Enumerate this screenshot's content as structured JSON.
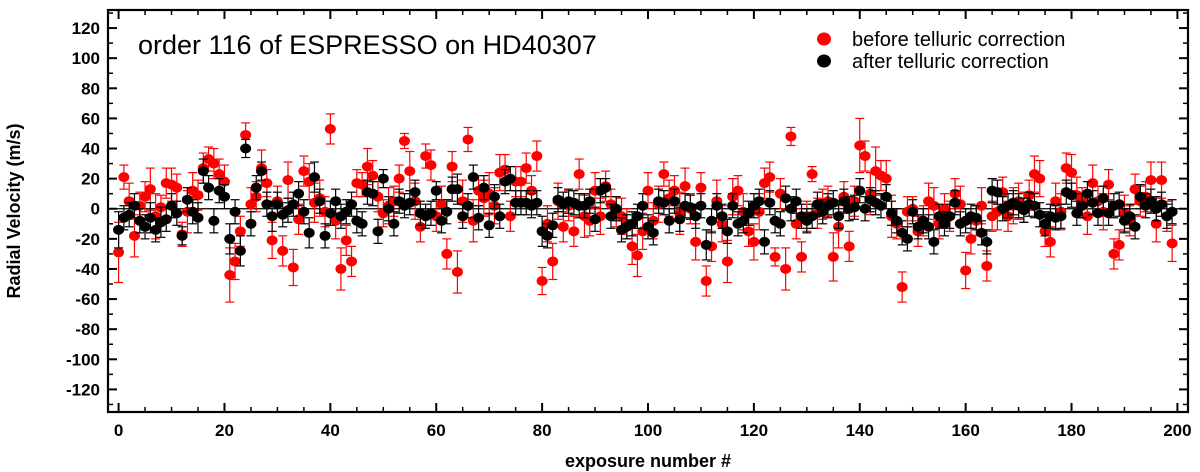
{
  "chart_data": {
    "type": "scatter",
    "title": "order 116 of ESPRESSO on HD40307",
    "xlabel": "exposure number #",
    "ylabel": "Radial Velocity (m/s)",
    "xlim": [
      -2,
      202
    ],
    "ylim": [
      -135,
      132
    ],
    "x_ticks": [
      0,
      20,
      40,
      60,
      80,
      100,
      120,
      140,
      160,
      180,
      200
    ],
    "y_ticks": [
      120,
      100,
      80,
      60,
      40,
      20,
      0,
      -20,
      -40,
      -60,
      -80,
      -100,
      -120
    ],
    "legend": {
      "position": "top-right"
    },
    "zero_line": true,
    "series": [
      {
        "name": "before telluric correction",
        "color": "#ff0000",
        "x": [
          0,
          1,
          2,
          3,
          4,
          5,
          6,
          7,
          8,
          9,
          10,
          11,
          12,
          13,
          14,
          15,
          16,
          17,
          18,
          19,
          20,
          21,
          22,
          23,
          24,
          25,
          26,
          27,
          28,
          29,
          30,
          31,
          32,
          33,
          34,
          35,
          36,
          37,
          38,
          39,
          40,
          41,
          42,
          43,
          44,
          45,
          46,
          47,
          48,
          49,
          50,
          51,
          52,
          53,
          54,
          55,
          56,
          57,
          58,
          59,
          60,
          61,
          62,
          63,
          64,
          65,
          66,
          67,
          68,
          69,
          70,
          71,
          72,
          73,
          74,
          75,
          76,
          77,
          78,
          79,
          80,
          81,
          82,
          83,
          84,
          85,
          86,
          87,
          88,
          89,
          90,
          91,
          92,
          93,
          94,
          95,
          96,
          97,
          98,
          99,
          100,
          101,
          102,
          103,
          104,
          105,
          106,
          107,
          108,
          109,
          110,
          111,
          112,
          113,
          114,
          115,
          116,
          117,
          118,
          119,
          120,
          121,
          122,
          123,
          124,
          125,
          126,
          127,
          128,
          129,
          130,
          131,
          132,
          133,
          134,
          135,
          136,
          137,
          138,
          139,
          140,
          141,
          142,
          143,
          144,
          145,
          146,
          147,
          148,
          149,
          150,
          151,
          152,
          153,
          154,
          155,
          156,
          157,
          158,
          159,
          160,
          161,
          162,
          163,
          164,
          165,
          166,
          167,
          168,
          169,
          170,
          171,
          172,
          173,
          174,
          175,
          176,
          177,
          178,
          179,
          180,
          181,
          182,
          183,
          184,
          185,
          186,
          187,
          188,
          189,
          190,
          191,
          192,
          193,
          194,
          195,
          196,
          197,
          198,
          199
        ],
        "y": [
          -29,
          21,
          5,
          -18,
          2,
          8,
          13,
          -5,
          1,
          17,
          16,
          14,
          -17,
          -2,
          12,
          9,
          27,
          33,
          30,
          23,
          18,
          -44,
          -35,
          -15,
          49,
          3,
          8,
          27,
          17,
          -21,
          5,
          -28,
          19,
          -39,
          -7,
          25,
          18,
          4,
          7,
          -2,
          53,
          -8,
          -40,
          -21,
          -35,
          17,
          16,
          28,
          22,
          8,
          -3,
          2,
          5,
          20,
          45,
          25,
          5,
          -12,
          35,
          29,
          -5,
          3,
          -30,
          28,
          -42,
          5,
          46,
          -8,
          12,
          7,
          10,
          2,
          24,
          26,
          -5,
          18,
          18,
          27,
          12,
          35,
          -48,
          -10,
          -35,
          5,
          -12,
          2,
          -15,
          23,
          -5,
          -8,
          12,
          -5,
          15,
          3,
          -2,
          -5,
          -10,
          -25,
          -31,
          -15,
          12,
          -8,
          3,
          23,
          7,
          12,
          -3,
          15,
          0,
          -22,
          14,
          -48,
          -25,
          5,
          -10,
          -35,
          8,
          12,
          -2,
          -15,
          -22,
          -2,
          17,
          21,
          -32,
          10,
          -40,
          48,
          -10,
          -32,
          -5,
          23,
          -3,
          3,
          5,
          -32,
          -12,
          8,
          -25,
          5,
          42,
          35,
          10,
          25,
          22,
          20,
          -5,
          -10,
          -52,
          -2,
          0,
          -15,
          -8,
          5,
          2,
          -10,
          0,
          -5,
          10,
          3,
          -41,
          -20,
          -8,
          2,
          -38,
          -5,
          -2,
          11,
          -5,
          2,
          5,
          1,
          9,
          23,
          20,
          -15,
          -22,
          5,
          -2,
          27,
          24,
          9,
          4,
          -5,
          17,
          5,
          -2,
          16,
          -30,
          -24,
          -3,
          -8,
          13,
          5,
          8,
          19,
          -10,
          19,
          -5,
          -23
        ],
        "error": [
          20,
          8,
          12,
          14,
          9,
          10,
          14,
          15,
          8,
          10,
          11,
          9,
          8,
          14,
          12,
          10,
          10,
          8,
          10,
          10,
          11,
          18,
          12,
          10,
          8,
          11,
          10,
          12,
          9,
          12,
          10,
          10,
          12,
          12,
          10,
          10,
          12,
          13,
          12,
          10,
          10,
          12,
          14,
          10,
          10,
          9,
          8,
          12,
          10,
          10,
          9,
          12,
          10,
          9,
          5,
          13,
          12,
          10,
          8,
          10,
          10,
          12,
          10,
          10,
          14,
          14,
          8,
          14,
          10,
          12,
          14,
          12,
          12,
          10,
          10,
          10,
          10,
          10,
          10,
          10,
          9,
          12,
          12,
          12,
          10,
          10,
          10,
          10,
          14,
          10,
          12,
          12,
          10,
          10,
          10,
          12,
          10,
          12,
          14,
          12,
          12,
          12,
          12,
          8,
          12,
          10,
          14,
          12,
          10,
          12,
          10,
          10,
          10,
          14,
          12,
          14,
          12,
          10,
          12,
          10,
          12,
          12,
          10,
          10,
          6,
          10,
          14,
          6,
          10,
          10,
          10,
          5,
          10,
          10,
          10,
          16,
          14,
          10,
          10,
          10,
          18,
          10,
          14,
          16,
          10,
          12,
          14,
          10,
          10,
          10,
          8,
          10,
          10,
          12,
          12,
          10,
          10,
          10,
          10,
          12,
          12,
          10,
          10,
          12,
          10,
          10,
          12,
          10,
          10,
          12,
          12,
          10,
          10,
          12,
          12,
          10,
          10,
          12,
          12,
          10,
          12,
          12,
          10,
          12,
          12,
          10,
          12,
          10,
          10,
          10,
          12,
          10,
          10,
          10,
          10,
          12,
          12,
          12,
          10,
          12
        ]
      },
      {
        "name": "after telluric correction",
        "color": "#000000",
        "x": [
          0,
          1,
          2,
          3,
          4,
          5,
          6,
          7,
          8,
          9,
          10,
          11,
          12,
          13,
          14,
          15,
          16,
          17,
          18,
          19,
          20,
          21,
          22,
          23,
          24,
          25,
          26,
          27,
          28,
          29,
          30,
          31,
          32,
          33,
          34,
          35,
          36,
          37,
          38,
          39,
          40,
          41,
          42,
          43,
          44,
          45,
          46,
          47,
          48,
          49,
          50,
          51,
          52,
          53,
          54,
          55,
          56,
          57,
          58,
          59,
          60,
          61,
          62,
          63,
          64,
          65,
          66,
          67,
          68,
          69,
          70,
          71,
          72,
          73,
          74,
          75,
          76,
          77,
          78,
          79,
          80,
          81,
          82,
          83,
          84,
          85,
          86,
          87,
          88,
          89,
          90,
          91,
          92,
          93,
          94,
          95,
          96,
          97,
          98,
          99,
          100,
          101,
          102,
          103,
          104,
          105,
          106,
          107,
          108,
          109,
          110,
          111,
          112,
          113,
          114,
          115,
          116,
          117,
          118,
          119,
          120,
          121,
          122,
          123,
          124,
          125,
          126,
          127,
          128,
          129,
          130,
          131,
          132,
          133,
          134,
          135,
          136,
          137,
          138,
          139,
          140,
          141,
          142,
          143,
          144,
          145,
          146,
          147,
          148,
          149,
          150,
          151,
          152,
          153,
          154,
          155,
          156,
          157,
          158,
          159,
          160,
          161,
          162,
          163,
          164,
          165,
          166,
          167,
          168,
          169,
          170,
          171,
          172,
          173,
          174,
          175,
          176,
          177,
          178,
          179,
          180,
          181,
          182,
          183,
          184,
          185,
          186,
          187,
          188,
          189,
          190,
          191,
          192,
          193,
          194,
          195,
          196,
          197,
          198,
          199
        ],
        "y": [
          -14,
          -6,
          -4,
          2,
          -8,
          -12,
          -6,
          -14,
          -9,
          -7,
          2,
          -3,
          -18,
          6,
          -2,
          -6,
          25,
          14,
          -8,
          12,
          8,
          -20,
          -2,
          -28,
          40,
          -10,
          14,
          25,
          3,
          -5,
          3,
          -4,
          -1,
          3,
          10,
          -2,
          -16,
          21,
          5,
          -18,
          -3,
          5,
          -5,
          -2,
          3,
          -8,
          -10,
          11,
          10,
          -15,
          20,
          0,
          -10,
          5,
          2,
          4,
          11,
          -3,
          -5,
          -3,
          12,
          -8,
          -2,
          13,
          13,
          -5,
          2,
          21,
          -6,
          14,
          -11,
          8,
          -5,
          18,
          20,
          4,
          4,
          4,
          2,
          4,
          -15,
          -18,
          -11,
          6,
          3,
          5,
          4,
          2,
          2,
          5,
          -7,
          12,
          14,
          -5,
          0,
          -14,
          -12,
          -10,
          -5,
          2,
          -12,
          -16,
          5,
          4,
          -8,
          5,
          -7,
          2,
          1,
          -5,
          2,
          -24,
          -8,
          2,
          -5,
          -15,
          2,
          -10,
          -8,
          -3,
          2,
          5,
          -22,
          4,
          -8,
          -10,
          7,
          0,
          5,
          -5,
          -8,
          -5,
          3,
          -2,
          2,
          4,
          -5,
          5,
          0,
          1,
          12,
          0,
          6,
          4,
          2,
          8,
          -3,
          -8,
          -16,
          -20,
          -2,
          -12,
          -8,
          -12,
          -22,
          -5,
          -10,
          -5,
          4,
          -10,
          -8,
          -5,
          -6,
          -16,
          -22,
          12,
          11,
          0,
          2,
          4,
          2,
          -1,
          3,
          2,
          -4,
          -10,
          -5,
          -6,
          -5,
          11,
          9,
          -3,
          2,
          10,
          4,
          -3,
          7,
          -3,
          2,
          3,
          -8,
          -5,
          -12,
          8,
          2,
          5,
          0,
          3,
          -5,
          -2
        ],
        "error": [
          12,
          8,
          8,
          8,
          8,
          8,
          10,
          8,
          10,
          8,
          8,
          8,
          6,
          8,
          8,
          10,
          8,
          8,
          8,
          8,
          8,
          10,
          8,
          10,
          6,
          8,
          8,
          6,
          8,
          10,
          8,
          8,
          8,
          8,
          8,
          8,
          10,
          10,
          8,
          8,
          8,
          8,
          8,
          8,
          8,
          8,
          8,
          8,
          8,
          8,
          6,
          8,
          8,
          8,
          8,
          8,
          8,
          8,
          8,
          8,
          6,
          8,
          8,
          8,
          10,
          8,
          8,
          8,
          8,
          8,
          8,
          8,
          8,
          8,
          8,
          8,
          8,
          8,
          8,
          8,
          10,
          8,
          8,
          8,
          8,
          8,
          8,
          8,
          8,
          8,
          8,
          8,
          6,
          8,
          8,
          8,
          8,
          8,
          8,
          8,
          8,
          8,
          8,
          8,
          8,
          8,
          8,
          8,
          8,
          8,
          8,
          10,
          8,
          8,
          8,
          8,
          8,
          8,
          8,
          8,
          8,
          8,
          8,
          8,
          8,
          8,
          8,
          8,
          8,
          8,
          8,
          8,
          8,
          8,
          8,
          8,
          8,
          8,
          8,
          8,
          8,
          8,
          8,
          8,
          8,
          8,
          8,
          8,
          8,
          8,
          8,
          8,
          8,
          8,
          8,
          8,
          8,
          8,
          8,
          8,
          8,
          8,
          8,
          8,
          8,
          8,
          8,
          8,
          8,
          8,
          8,
          8,
          8,
          8,
          8,
          8,
          8,
          8,
          8,
          8,
          8,
          8,
          8,
          8,
          8,
          8,
          8,
          8,
          8,
          8,
          8,
          8,
          8,
          8,
          8,
          8,
          8,
          8,
          8,
          8
        ]
      }
    ]
  }
}
